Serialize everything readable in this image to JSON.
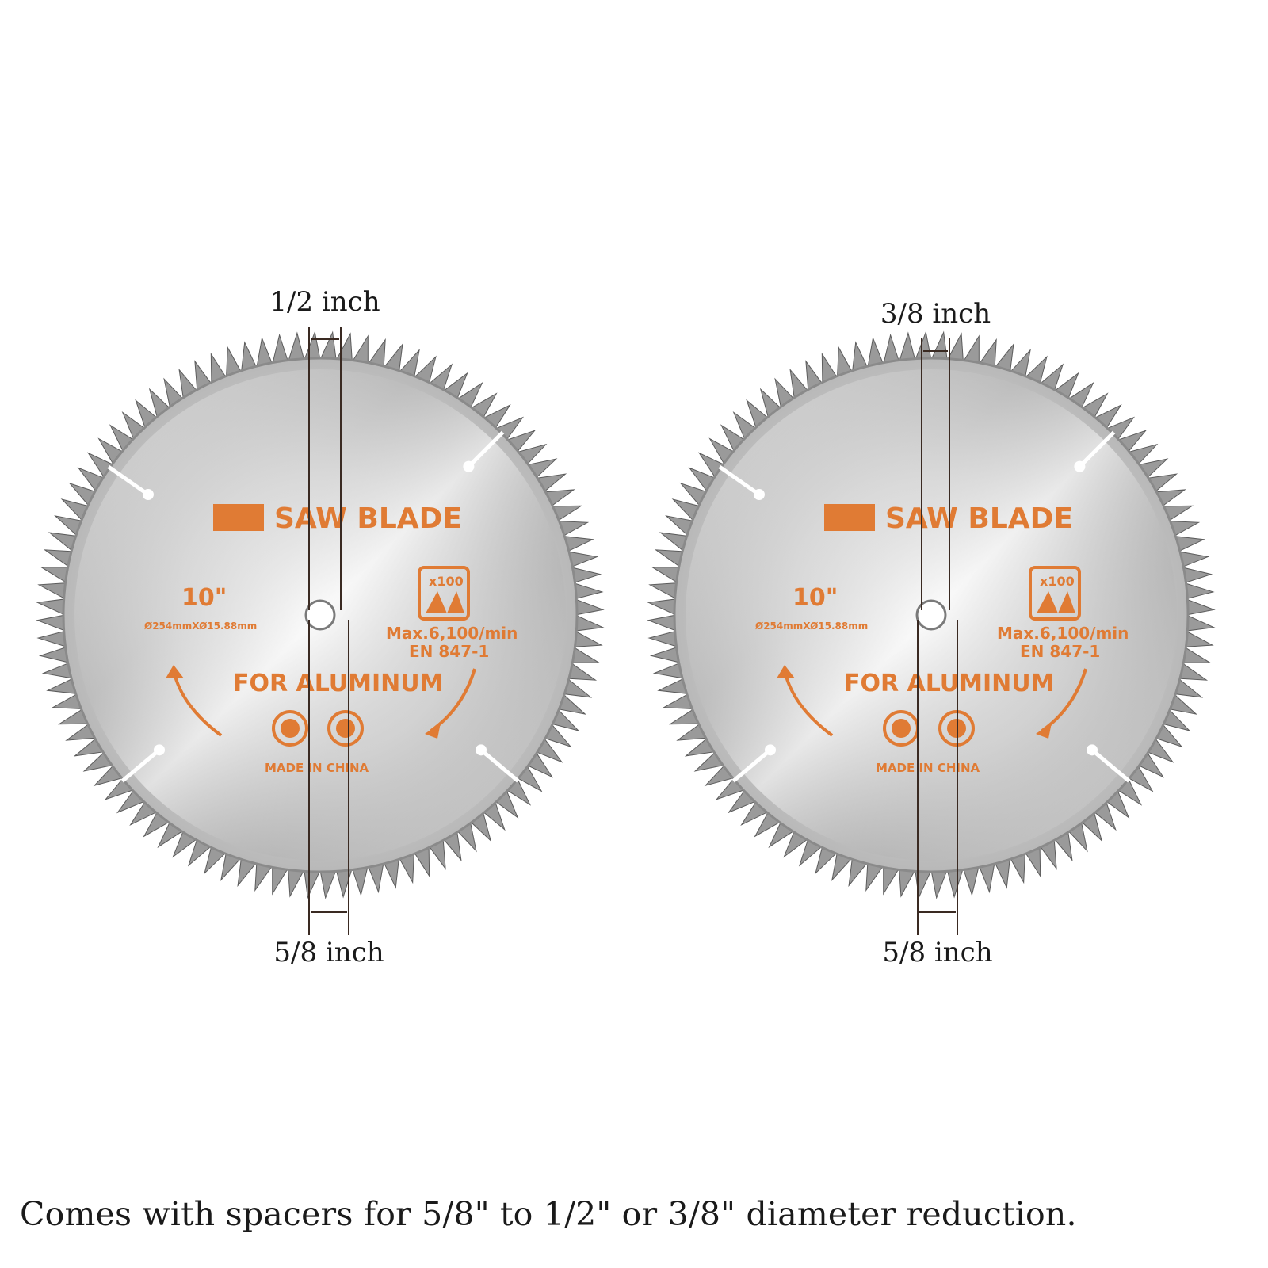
{
  "blades": [
    {
      "brand_label": "SAW BLADE",
      "size": "10\"",
      "spec": "Ø254mmXØ15.88mm",
      "tooth_count": "x100",
      "max_speed": "Max.6,100/min",
      "standard": "EN 847-1",
      "material": "FOR ALUMINUM",
      "origin": "MADE IN CHINA",
      "top_dimension": "1/2 inch",
      "bottom_dimension": "5/8 inch"
    },
    {
      "brand_label": "SAW BLADE",
      "size": "10\"",
      "spec": "Ø254mmXØ15.88mm",
      "tooth_count": "x100",
      "max_speed": "Max.6,100/min",
      "standard": "EN 847-1",
      "material": "FOR ALUMINUM",
      "origin": "MADE IN CHINA",
      "top_dimension": "3/8 inch",
      "bottom_dimension": "5/8 inch"
    }
  ],
  "caption": "Comes with spacers for 5/8\" to 1/2\" or 3/8\" diameter reduction.",
  "colors": {
    "accent": "#e07b34",
    "line": "#3a2a22",
    "steel_light": "#ececec",
    "steel_dark": "#8e8e8e"
  },
  "icons": [
    "mask-icon",
    "glove-icon",
    "rotation-arrow-icon",
    "tooth-icon"
  ]
}
